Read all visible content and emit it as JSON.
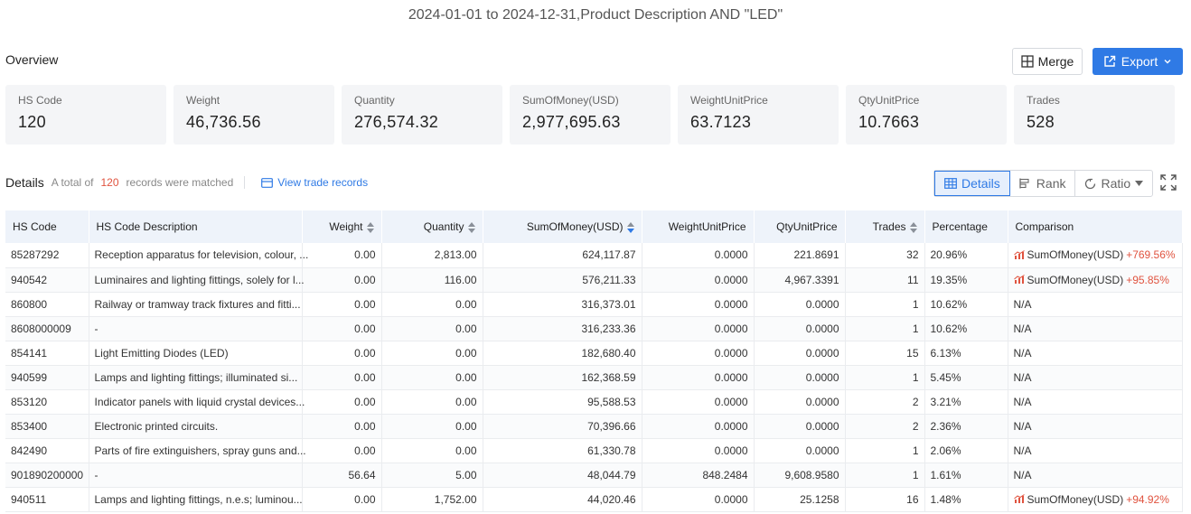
{
  "title": "2024-01-01 to 2024-12-31,Product Description AND \"LED\"",
  "overview": {
    "label": "Overview",
    "merge_label": "Merge",
    "export_label": "Export",
    "cards": [
      {
        "label": "HS Code",
        "value": "120"
      },
      {
        "label": "Weight",
        "value": "46,736.56"
      },
      {
        "label": "Quantity",
        "value": "276,574.32"
      },
      {
        "label": "SumOfMoney(USD)",
        "value": "2,977,695.63"
      },
      {
        "label": "WeightUnitPrice",
        "value": "63.7123"
      },
      {
        "label": "QtyUnitPrice",
        "value": "10.7663"
      },
      {
        "label": "Trades",
        "value": "528"
      }
    ]
  },
  "details": {
    "title": "Details",
    "prefix": "A total of",
    "count": "120",
    "suffix": "records were matched",
    "view_link": "View trade records",
    "tabs": [
      "Details",
      "Rank",
      "Ratio"
    ]
  },
  "table": {
    "columns": [
      "HS Code",
      "HS Code Description",
      "Weight",
      "Quantity",
      "SumOfMoney(USD)",
      "WeightUnitPrice",
      "QtyUnitPrice",
      "Trades",
      "Percentage",
      "Comparison"
    ],
    "rows": [
      {
        "hs": "85287292",
        "desc": "Reception apparatus for television, colour, ...",
        "weight": "0.00",
        "qty": "2,813.00",
        "sum": "624,117.87",
        "wup": "0.0000",
        "qup": "221.8691",
        "trades": "32",
        "pct": "20.96%",
        "cmp_label": "SumOfMoney(USD)",
        "cmp_value": "+769.56%"
      },
      {
        "hs": "940542",
        "desc": "Luminaires and lighting fittings, solely for l...",
        "weight": "0.00",
        "qty": "116.00",
        "sum": "576,211.33",
        "wup": "0.0000",
        "qup": "4,967.3391",
        "trades": "11",
        "pct": "19.35%",
        "cmp_label": "SumOfMoney(USD)",
        "cmp_value": "+95.85%"
      },
      {
        "hs": "860800",
        "desc": "Railway or tramway track fixtures and fitti...",
        "weight": "0.00",
        "qty": "0.00",
        "sum": "316,373.01",
        "wup": "0.0000",
        "qup": "0.0000",
        "trades": "1",
        "pct": "10.62%",
        "cmp_na": "N/A"
      },
      {
        "hs": "8608000009",
        "desc": "-",
        "weight": "0.00",
        "qty": "0.00",
        "sum": "316,233.36",
        "wup": "0.0000",
        "qup": "0.0000",
        "trades": "1",
        "pct": "10.62%",
        "cmp_na": "N/A"
      },
      {
        "hs": "854141",
        "desc": "Light Emitting Diodes (LED)",
        "weight": "0.00",
        "qty": "0.00",
        "sum": "182,680.40",
        "wup": "0.0000",
        "qup": "0.0000",
        "trades": "15",
        "pct": "6.13%",
        "cmp_na": "N/A"
      },
      {
        "hs": "940599",
        "desc": "Lamps and lighting fittings; illuminated si...",
        "weight": "0.00",
        "qty": "0.00",
        "sum": "162,368.59",
        "wup": "0.0000",
        "qup": "0.0000",
        "trades": "1",
        "pct": "5.45%",
        "cmp_na": "N/A"
      },
      {
        "hs": "853120",
        "desc": "Indicator panels with liquid crystal devices...",
        "weight": "0.00",
        "qty": "0.00",
        "sum": "95,588.53",
        "wup": "0.0000",
        "qup": "0.0000",
        "trades": "2",
        "pct": "3.21%",
        "cmp_na": "N/A"
      },
      {
        "hs": "853400",
        "desc": "Electronic printed circuits.",
        "weight": "0.00",
        "qty": "0.00",
        "sum": "70,396.66",
        "wup": "0.0000",
        "qup": "0.0000",
        "trades": "2",
        "pct": "2.36%",
        "cmp_na": "N/A"
      },
      {
        "hs": "842490",
        "desc": "Parts of fire extinguishers, spray guns and...",
        "weight": "0.00",
        "qty": "0.00",
        "sum": "61,330.78",
        "wup": "0.0000",
        "qup": "0.0000",
        "trades": "1",
        "pct": "2.06%",
        "cmp_na": "N/A"
      },
      {
        "hs": "901890200000",
        "desc": "-",
        "weight": "56.64",
        "qty": "5.00",
        "sum": "48,044.79",
        "wup": "848.2484",
        "qup": "9,608.9580",
        "trades": "1",
        "pct": "1.61%",
        "cmp_na": "N/A"
      },
      {
        "hs": "940511",
        "desc": "Lamps and lighting fittings, n.e.s; luminou...",
        "weight": "0.00",
        "qty": "1,752.00",
        "sum": "44,020.46",
        "wup": "0.0000",
        "qup": "25.1258",
        "trades": "16",
        "pct": "1.48%",
        "cmp_label": "SumOfMoney(USD)",
        "cmp_value": "+94.92%"
      }
    ]
  },
  "colors": {
    "accent": "#2f7ae5",
    "positive": "#e0533f",
    "header_bg": "#eef3fa"
  }
}
